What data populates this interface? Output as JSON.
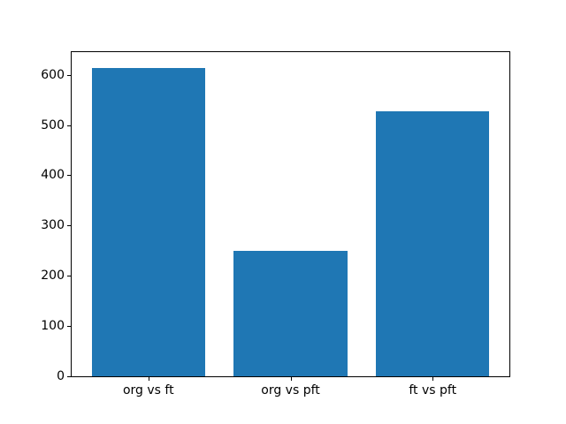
{
  "chart_data": {
    "type": "bar",
    "categories": [
      "org vs ft",
      "org vs pft",
      "ft vs pft"
    ],
    "values": [
      614,
      249,
      527
    ],
    "title": "",
    "xlabel": "",
    "ylabel": "",
    "yticks": [
      0,
      100,
      200,
      300,
      400,
      500,
      600
    ],
    "ylim": [
      0,
      645
    ],
    "xlim": [
      -0.54,
      2.54
    ],
    "bar_width": 0.8,
    "bar_color": "#1f77b4",
    "grid": false,
    "legend": false
  },
  "figure": {
    "background": "#ffffff",
    "spine_color": "#000000",
    "tick_color": "#000000"
  }
}
